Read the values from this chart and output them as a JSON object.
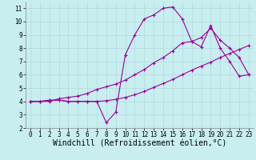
{
  "title": "",
  "xlabel": "Windchill (Refroidissement éolien,°C)",
  "ylabel": "",
  "bg_color": "#c8eef0",
  "grid_color": "#b0d8dc",
  "line_color": "#990099",
  "xlim": [
    -0.5,
    23.5
  ],
  "ylim": [
    2,
    11.5
  ],
  "xticks": [
    0,
    1,
    2,
    3,
    4,
    5,
    6,
    7,
    8,
    9,
    10,
    11,
    12,
    13,
    14,
    15,
    16,
    17,
    18,
    19,
    20,
    21,
    22,
    23
  ],
  "yticks": [
    2,
    3,
    4,
    5,
    6,
    7,
    8,
    9,
    10,
    11
  ],
  "line1_x": [
    0,
    1,
    2,
    3,
    4,
    5,
    6,
    7,
    8,
    9,
    10,
    11,
    12,
    13,
    14,
    15,
    16,
    17,
    18,
    19,
    20,
    21,
    22,
    23
  ],
  "line1_y": [
    4.0,
    4.0,
    4.05,
    4.1,
    4.0,
    4.0,
    4.0,
    4.0,
    4.05,
    4.15,
    4.3,
    4.5,
    4.75,
    5.05,
    5.35,
    5.65,
    6.0,
    6.35,
    6.65,
    6.95,
    7.3,
    7.6,
    7.9,
    8.2
  ],
  "line2_x": [
    0,
    1,
    2,
    3,
    4,
    5,
    6,
    7,
    8,
    9,
    10,
    11,
    12,
    13,
    14,
    15,
    16,
    17,
    18,
    19,
    20,
    21,
    22,
    23
  ],
  "line2_y": [
    4.0,
    4.0,
    4.1,
    4.1,
    4.0,
    4.0,
    4.0,
    4.0,
    2.4,
    3.2,
    7.5,
    9.0,
    10.2,
    10.5,
    11.0,
    11.1,
    10.2,
    8.5,
    8.1,
    9.7,
    8.0,
    7.0,
    5.9,
    6.0
  ],
  "line3_x": [
    0,
    1,
    2,
    3,
    4,
    5,
    6,
    7,
    8,
    9,
    10,
    11,
    12,
    13,
    14,
    15,
    16,
    17,
    18,
    19,
    20,
    21,
    22,
    23
  ],
  "line3_y": [
    4.0,
    4.0,
    4.0,
    4.2,
    4.3,
    4.4,
    4.6,
    4.9,
    5.1,
    5.3,
    5.6,
    6.0,
    6.4,
    6.9,
    7.3,
    7.8,
    8.4,
    8.5,
    8.8,
    9.5,
    8.6,
    8.0,
    7.3,
    6.0
  ],
  "marker": "+",
  "markersize": 3,
  "linewidth": 0.8,
  "tick_fontsize": 5.5,
  "xlabel_fontsize": 7
}
